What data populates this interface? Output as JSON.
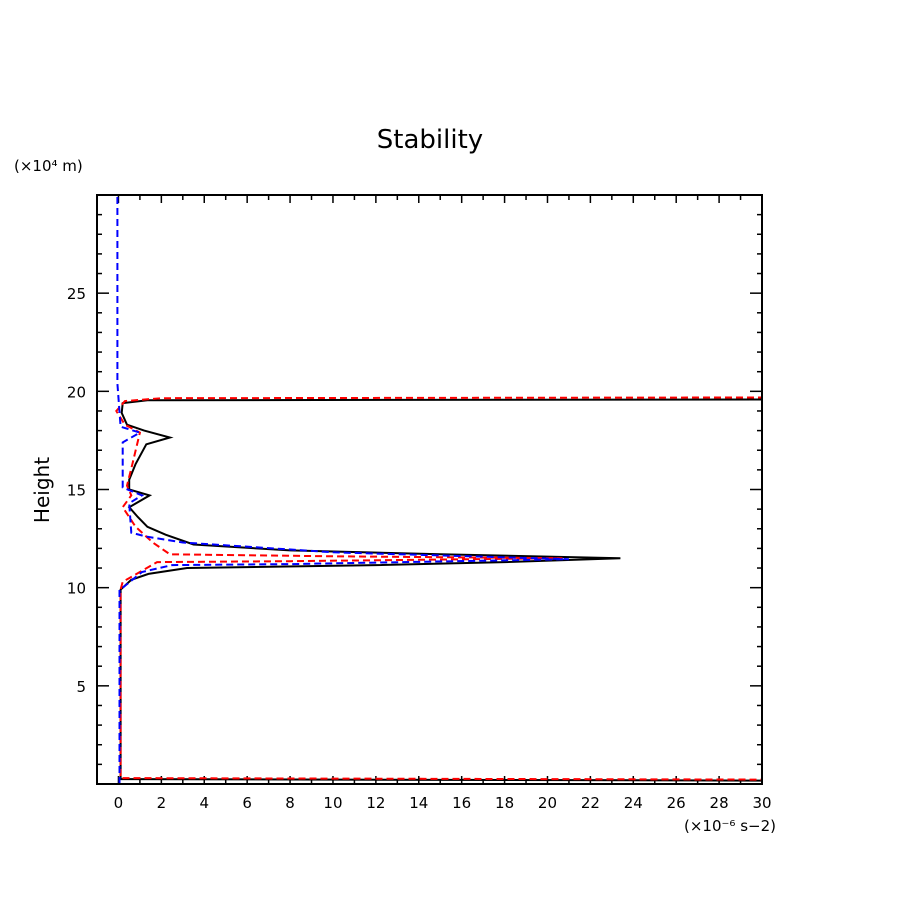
{
  "chart_data": {
    "type": "line",
    "title": "Stability",
    "xlabel": "",
    "x_unit": "(×10⁻⁶ s−2)",
    "ylabel": "Height",
    "y_unit": "(×10⁴ m)",
    "xlim": [
      -1,
      30
    ],
    "ylim": [
      0,
      30
    ],
    "x_ticks": [
      0,
      2,
      4,
      6,
      8,
      10,
      12,
      14,
      16,
      18,
      20,
      22,
      24,
      26,
      28,
      30
    ],
    "y_ticks": [
      5,
      10,
      15,
      20,
      25
    ],
    "grid": false,
    "series": [
      {
        "color": "#000000",
        "style": "solid",
        "points": [
          [
            40,
            0.15
          ],
          [
            0.1,
            0.25
          ],
          [
            0.1,
            9.9
          ],
          [
            0.6,
            10.4
          ],
          [
            1.4,
            10.7
          ],
          [
            3.2,
            11.0
          ],
          [
            12,
            11.15
          ],
          [
            18,
            11.3
          ],
          [
            23.4,
            11.5
          ],
          [
            15,
            11.7
          ],
          [
            8,
            11.9
          ],
          [
            3.5,
            12.2
          ],
          [
            2.2,
            12.7
          ],
          [
            1.35,
            13.1
          ],
          [
            0.9,
            13.6
          ],
          [
            0.5,
            14.1
          ],
          [
            1.45,
            14.7
          ],
          [
            0.5,
            15.0
          ],
          [
            0.5,
            15.5
          ],
          [
            0.8,
            16.3
          ],
          [
            1.3,
            17.3
          ],
          [
            2.4,
            17.65
          ],
          [
            1.2,
            18.0
          ],
          [
            0.4,
            18.3
          ],
          [
            0.15,
            18.9
          ],
          [
            0.2,
            19.4
          ],
          [
            1.35,
            19.55
          ],
          [
            40,
            19.6
          ]
        ]
      },
      {
        "color": "#ff0000",
        "style": "dashed",
        "points": [
          [
            40,
            0.2
          ],
          [
            0.1,
            0.3
          ],
          [
            0.1,
            9.9
          ],
          [
            0.2,
            10.3
          ],
          [
            1.0,
            10.8
          ],
          [
            1.8,
            11.3
          ],
          [
            8,
            11.35
          ],
          [
            20.7,
            11.5
          ],
          [
            10,
            11.6
          ],
          [
            2.4,
            11.7
          ],
          [
            1.6,
            12.3
          ],
          [
            0.8,
            13.1
          ],
          [
            0.2,
            14.1
          ],
          [
            0.6,
            14.7
          ],
          [
            0.4,
            15.2
          ],
          [
            0.65,
            16.3
          ],
          [
            1.0,
            17.9
          ],
          [
            0.3,
            18.3
          ],
          [
            -0.1,
            19.0
          ],
          [
            0.3,
            19.5
          ],
          [
            2,
            19.65
          ],
          [
            40,
            19.7
          ]
        ]
      },
      {
        "color": "#0000ff",
        "style": "dashed",
        "points": [
          [
            0.05,
            0
          ],
          [
            0.05,
            9.9
          ],
          [
            0.2,
            10.0
          ],
          [
            1.1,
            10.8
          ],
          [
            2.5,
            11.15
          ],
          [
            8,
            11.2
          ],
          [
            21,
            11.45
          ],
          [
            10,
            11.8
          ],
          [
            3,
            12.3
          ],
          [
            1.3,
            12.6
          ],
          [
            0.6,
            12.8
          ],
          [
            0.5,
            14.3
          ],
          [
            1.1,
            14.7
          ],
          [
            0.2,
            15.1
          ],
          [
            0.2,
            17.4
          ],
          [
            1.0,
            17.9
          ],
          [
            0.1,
            18.2
          ],
          [
            -0.05,
            20.4
          ],
          [
            -0.05,
            30
          ]
        ]
      }
    ]
  }
}
